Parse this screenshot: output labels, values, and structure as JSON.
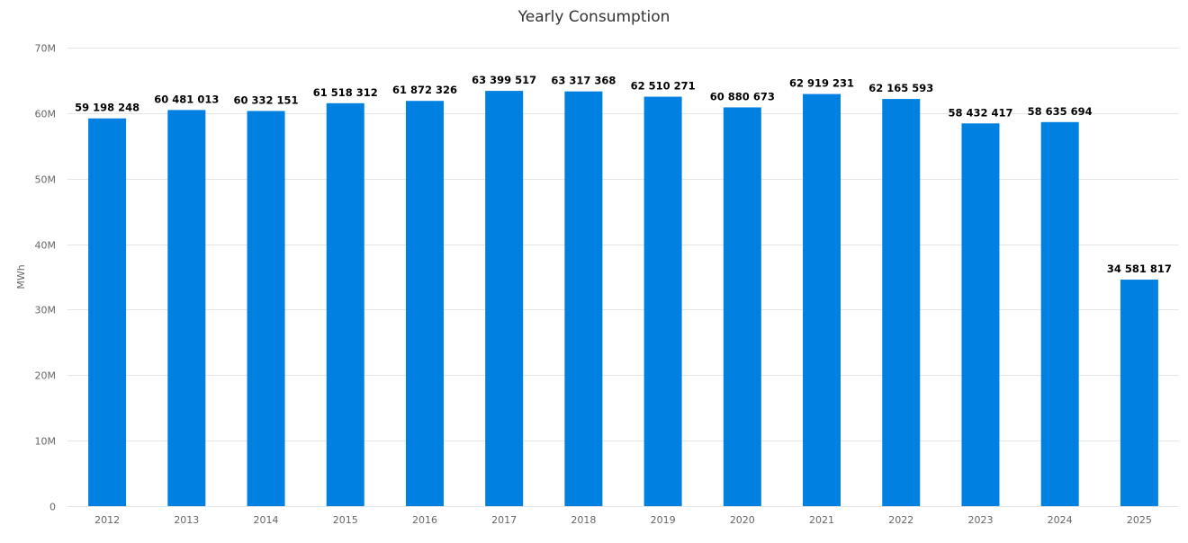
{
  "chart_data": {
    "type": "bar",
    "title": "Yearly Consumption",
    "xlabel": "",
    "ylabel": "MWh",
    "ylim": [
      0,
      70000000
    ],
    "yticks": [
      0,
      10000000,
      20000000,
      30000000,
      40000000,
      50000000,
      60000000,
      70000000
    ],
    "ytick_labels": [
      "0",
      "10M",
      "20M",
      "30M",
      "40M",
      "50M",
      "60M",
      "70M"
    ],
    "grid": true,
    "categories": [
      "2012",
      "2013",
      "2014",
      "2015",
      "2016",
      "2017",
      "2018",
      "2019",
      "2020",
      "2021",
      "2022",
      "2023",
      "2024",
      "2025"
    ],
    "values": [
      59198248,
      60481013,
      60332151,
      61518312,
      61872326,
      63399517,
      63317368,
      62510271,
      60880673,
      62919231,
      62165593,
      58432417,
      58635694,
      34581817
    ],
    "data_labels": [
      "59 198 248",
      "60 481 013",
      "60 332 151",
      "61 518 312",
      "61 872 326",
      "63 399 517",
      "63 317 368",
      "62 510 271",
      "60 880 673",
      "62 919 231",
      "62 165 593",
      "58 432 417",
      "58 635 694",
      "34 581 817"
    ],
    "bar_color": "#0080e0"
  }
}
